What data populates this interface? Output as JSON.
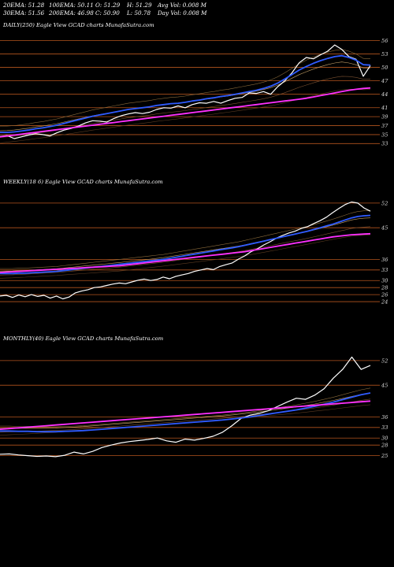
{
  "stats": {
    "row1": [
      "20EMA: 51.28",
      "100EMA: 50.11",
      "O: 51.29",
      "H: 51.29",
      "Avg Vol: 0.008 M"
    ],
    "row2": [
      "30EMA: 51.56",
      "200EMA: 46.98",
      "C: 50.90",
      "L: 50.78",
      "Day Vol: 0.008 M"
    ]
  },
  "panels": [
    {
      "title": "DAILY(250) Eagle   View  GCAD charts MunafaSutra.com",
      "ticks": [
        "56",
        "53",
        "50",
        "47",
        "44",
        "41",
        "39",
        "37",
        "35",
        "33"
      ]
    },
    {
      "title": "WEEKLY(18                6) Eagle   View  GCAD charts MunafaSutra.com",
      "ticks": [
        "52",
        "45",
        "36",
        "33",
        "30",
        "28",
        "26",
        "24"
      ]
    },
    {
      "title": "MONTHLY(40) Eagle   View  GCAD charts MunafaSutra.com",
      "ticks": [
        "52",
        "45",
        "36",
        "33",
        "30",
        "28",
        "25"
      ]
    }
  ],
  "chart_data": [
    {
      "type": "line",
      "title": "DAILY(250)",
      "ylim": [
        32,
        58
      ],
      "y_ticks": [
        56,
        53,
        50,
        47,
        44,
        41,
        39,
        37,
        35,
        33
      ],
      "series": [
        {
          "name": "",
          "color": "#ffffff",
          "values": [
            34.6,
            34.8,
            34.1,
            34.5,
            34.9,
            35.2,
            35.0,
            34.7,
            35.4,
            36.0,
            36.4,
            36.9,
            37.6,
            38.1,
            38.0,
            37.8,
            38.6,
            39.2,
            39.6,
            39.9,
            39.7,
            40.0,
            40.6,
            41.0,
            40.9,
            41.4,
            41.0,
            41.7,
            42.1,
            42.0,
            42.4,
            42.0,
            42.6,
            43.1,
            43.3,
            44.3,
            44.2,
            44.6,
            44.0,
            45.7,
            47.0,
            48.8,
            51.0,
            52.2,
            51.9,
            52.8,
            53.6,
            55.0,
            54.0,
            52.4,
            51.8,
            48.0,
            50.4
          ]
        },
        {
          "name": "",
          "color": "#2f5bff",
          "values": [
            35.5,
            35.5,
            35.6,
            35.8,
            36.0,
            36.3,
            36.5,
            36.8,
            37.1,
            37.5,
            37.9,
            38.3,
            38.7,
            39.1,
            39.4,
            39.7,
            40.0,
            40.3,
            40.6,
            40.8,
            41.0,
            41.2,
            41.5,
            41.7,
            41.9,
            42.0,
            42.2,
            42.5,
            42.7,
            43.0,
            43.2,
            43.5,
            43.7,
            44.0,
            44.3,
            44.6,
            44.9,
            45.3,
            45.8,
            46.5,
            47.4,
            48.4,
            49.4,
            50.2,
            50.9,
            51.5,
            52.0,
            52.4,
            52.6,
            52.2,
            51.6,
            50.6,
            50.5
          ]
        },
        {
          "name": "",
          "color": "#ff30ff",
          "values": [
            34.5,
            34.7,
            34.9,
            35.1,
            35.3,
            35.5,
            35.7,
            35.9,
            36.1,
            36.3,
            36.5,
            36.7,
            36.9,
            37.1,
            37.3,
            37.5,
            37.7,
            37.9,
            38.1,
            38.3,
            38.5,
            38.7,
            38.9,
            39.1,
            39.3,
            39.5,
            39.7,
            39.9,
            40.1,
            40.3,
            40.5,
            40.7,
            40.9,
            41.1,
            41.3,
            41.5,
            41.7,
            41.9,
            42.1,
            42.3,
            42.5,
            42.7,
            42.9,
            43.1,
            43.4,
            43.7,
            44.0,
            44.3,
            44.6,
            44.9,
            45.1,
            45.3,
            45.4
          ]
        }
      ]
    },
    {
      "type": "line",
      "title": "WEEKLY(186)",
      "ylim": [
        22,
        56
      ],
      "y_ticks": [
        52,
        45,
        36,
        33,
        30,
        28,
        26,
        24
      ],
      "series": [
        {
          "name": "",
          "color": "#ffffff",
          "values": [
            25.6,
            25.8,
            25.2,
            25.9,
            25.4,
            26.0,
            25.5,
            25.8,
            25.0,
            25.6,
            24.8,
            25.3,
            26.5,
            27.0,
            27.4,
            28.0,
            28.2,
            28.6,
            29.0,
            29.3,
            29.1,
            29.6,
            30.1,
            30.4,
            30.0,
            30.3,
            31.0,
            30.5,
            31.2,
            31.6,
            32.0,
            32.6,
            33.0,
            33.4,
            33.1,
            34.0,
            34.5,
            35.0,
            36.1,
            37.0,
            38.2,
            39.0,
            40.1,
            41.0,
            42.0,
            42.8,
            43.5,
            44.0,
            44.8,
            45.3,
            46.2,
            47.0,
            48.0,
            49.3,
            50.5,
            51.6,
            52.3,
            52.0,
            50.6,
            49.7
          ]
        },
        {
          "name": "",
          "color": "#2f5bff",
          "values": [
            32.0,
            32.0,
            32.0,
            32.1,
            32.1,
            32.2,
            32.3,
            32.4,
            32.5,
            32.6,
            32.8,
            33.0,
            33.2,
            33.4,
            33.6,
            33.8,
            34.0,
            34.2,
            34.4,
            34.6,
            34.8,
            35.0,
            35.2,
            35.4,
            35.6,
            35.8,
            36.0,
            36.3,
            36.6,
            36.9,
            37.2,
            37.5,
            37.8,
            38.1,
            38.4,
            38.7,
            39.0,
            39.3,
            39.6,
            40.0,
            40.4,
            40.8,
            41.2,
            41.6,
            42.0,
            42.4,
            42.8,
            43.2,
            43.6,
            44.0,
            44.5,
            45.0,
            45.5,
            46.0,
            46.6,
            47.2,
            47.8,
            48.2,
            48.4,
            48.5
          ]
        },
        {
          "name": "",
          "color": "#ff30ff",
          "values": [
            32.3,
            32.4,
            32.5,
            32.6,
            32.7,
            32.8,
            32.9,
            33.0,
            33.1,
            33.2,
            33.3,
            33.4,
            33.5,
            33.6,
            33.7,
            33.8,
            33.9,
            34.0,
            34.1,
            34.2,
            34.4,
            34.6,
            34.8,
            35.0,
            35.2,
            35.4,
            35.6,
            35.8,
            36.0,
            36.2,
            36.4,
            36.6,
            36.8,
            37.0,
            37.2,
            37.4,
            37.6,
            37.8,
            38.0,
            38.2,
            38.5,
            38.8,
            39.1,
            39.4,
            39.7,
            40.0,
            40.3,
            40.6,
            40.9,
            41.2,
            41.5,
            41.8,
            42.1,
            42.4,
            42.6,
            42.8,
            43.0,
            43.1,
            43.2,
            43.3
          ]
        }
      ]
    },
    {
      "type": "line",
      "title": "MONTHLY(40)",
      "ylim": [
        22,
        56
      ],
      "y_ticks": [
        52,
        45,
        36,
        33,
        30,
        28,
        25
      ],
      "series": [
        {
          "name": "",
          "color": "#ffffff",
          "values": [
            25.4,
            25.5,
            25.2,
            25.0,
            24.8,
            24.9,
            24.7,
            25.1,
            26.0,
            25.5,
            26.2,
            27.3,
            28.0,
            28.6,
            29.0,
            29.3,
            29.6,
            30.0,
            29.2,
            28.8,
            29.7,
            29.4,
            29.9,
            30.5,
            31.6,
            33.4,
            35.5,
            36.5,
            37.0,
            37.8,
            39.0,
            40.2,
            41.3,
            41.0,
            42.2,
            44.0,
            47.0,
            49.5,
            53.0,
            49.5,
            50.6
          ]
        },
        {
          "name": "",
          "color": "#2f5bff",
          "values": [
            32.0,
            32.0,
            31.9,
            31.9,
            31.8,
            31.8,
            31.8,
            31.9,
            32.0,
            32.1,
            32.3,
            32.5,
            32.7,
            32.9,
            33.1,
            33.3,
            33.5,
            33.7,
            33.9,
            34.1,
            34.3,
            34.5,
            34.7,
            34.9,
            35.1,
            35.4,
            35.7,
            36.0,
            36.4,
            36.8,
            37.2,
            37.6,
            38.0,
            38.5,
            39.0,
            39.6,
            40.2,
            40.9,
            41.6,
            42.3,
            42.8
          ]
        },
        {
          "name": "",
          "color": "#ff30ff",
          "values": [
            32.5,
            32.7,
            32.9,
            33.1,
            33.3,
            33.5,
            33.7,
            33.9,
            34.1,
            34.3,
            34.5,
            34.7,
            34.9,
            35.1,
            35.3,
            35.5,
            35.7,
            35.9,
            36.1,
            36.3,
            36.5,
            36.7,
            36.9,
            37.1,
            37.3,
            37.5,
            37.7,
            37.9,
            38.1,
            38.3,
            38.5,
            38.7,
            38.9,
            39.1,
            39.3,
            39.5,
            39.7,
            39.9,
            40.1,
            40.3,
            40.5
          ]
        }
      ]
    }
  ]
}
